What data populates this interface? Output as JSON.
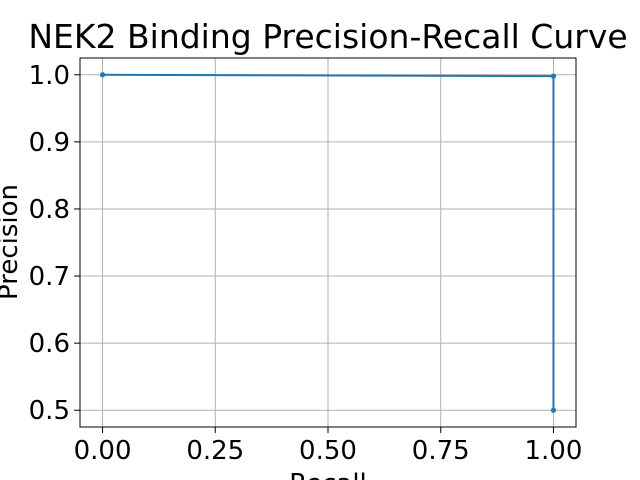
{
  "chart_data": {
    "type": "line",
    "title": "NEK2 Binding Precision-Recall Curve",
    "xlabel": "Recall",
    "ylabel": "Precision",
    "xlim": [
      -0.05,
      1.05
    ],
    "ylim": [
      0.475,
      1.025
    ],
    "xticks": [
      0.0,
      0.25,
      0.5,
      0.75,
      1.0
    ],
    "xtick_labels": [
      "0.00",
      "0.25",
      "0.50",
      "0.75",
      "1.00"
    ],
    "yticks": [
      0.5,
      0.6,
      0.7,
      0.8,
      0.9,
      1.0
    ],
    "ytick_labels": [
      "0.5",
      "0.6",
      "0.7",
      "0.8",
      "0.9",
      "1.0"
    ],
    "grid": true,
    "series": [
      {
        "color": "#1f77b4",
        "marker": "point",
        "x": [
          0.0,
          1.0,
          1.0
        ],
        "y": [
          1.0,
          0.998,
          0.5
        ]
      }
    ]
  }
}
